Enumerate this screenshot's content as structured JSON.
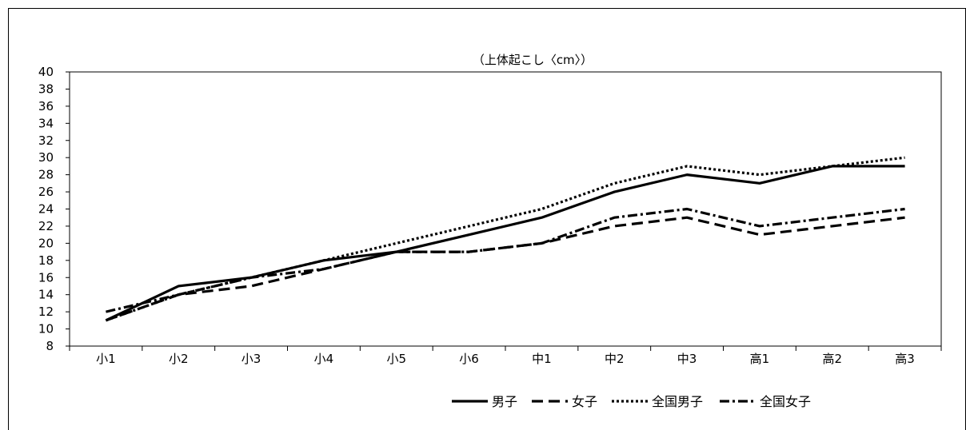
{
  "chart_data": {
    "type": "line",
    "title": "（上体起こし〈cm〉）",
    "categories": [
      "小1",
      "小2",
      "小3",
      "小4",
      "小5",
      "小6",
      "中1",
      "中2",
      "中3",
      "高1",
      "高2",
      "高3"
    ],
    "ylim": [
      8,
      40
    ],
    "yticks": [
      8,
      10,
      12,
      14,
      16,
      18,
      20,
      22,
      24,
      26,
      28,
      30,
      32,
      34,
      36,
      38,
      40
    ],
    "grid": false,
    "legend_position": "bottom-right",
    "series": [
      {
        "name": "男子",
        "style": "solid",
        "values": [
          11,
          15,
          16,
          18,
          19,
          21,
          23,
          26,
          28,
          27,
          29,
          29
        ]
      },
      {
        "name": "女子",
        "style": "dashed",
        "values": [
          11,
          14,
          15,
          17,
          19,
          19,
          20,
          22,
          23,
          21,
          22,
          23
        ]
      },
      {
        "name": "全国男子",
        "style": "dotted",
        "values": [
          11,
          14,
          16,
          18,
          20,
          22,
          24,
          27,
          29,
          28,
          29,
          30
        ]
      },
      {
        "name": "全国女子",
        "style": "dashdot",
        "values": [
          12,
          14,
          16,
          17,
          19,
          19,
          20,
          23,
          24,
          22,
          23,
          24
        ]
      }
    ],
    "colors": {
      "line": "#000000",
      "axis": "#000000",
      "background": "#ffffff"
    }
  }
}
